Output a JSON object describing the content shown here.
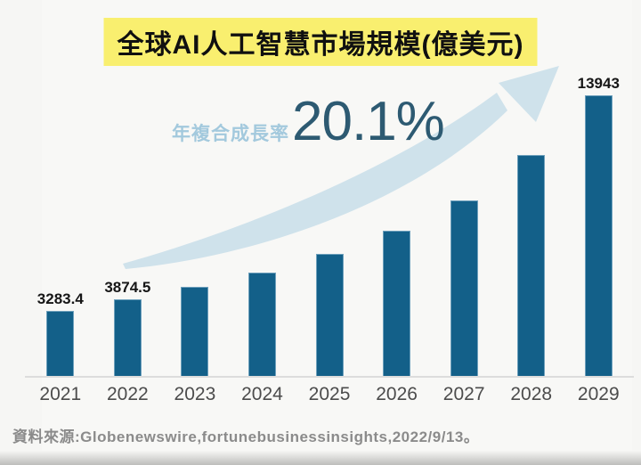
{
  "title": {
    "text": "全球AI人工智慧市場規模(億美元)",
    "highlight_color": "#f9ef6f"
  },
  "annotation": {
    "prefix": "年複合成長率",
    "value": "20.1%",
    "prefix_color": "#a3c9dd",
    "value_color": "#2d5a72"
  },
  "source": {
    "text": "資料來源:Globenewswire,fortunebusinessinsights,2022/9/13。"
  },
  "icons": {
    "growth_arrow": "curved-up-right-swoosh",
    "growth_arrow_color": "#cfe2eb"
  },
  "colors": {
    "background": "#f6f6f4",
    "bar": "#136089",
    "axis_line": "#dcdcdc",
    "year_label": "#4c4c4c",
    "bar_value_label": "#161616",
    "source_text": "#8b8b8b"
  },
  "chart_data": {
    "type": "bar",
    "title": "全球AI人工智慧市場規模(億美元)",
    "unit": "億美元",
    "categories": [
      "2021",
      "2022",
      "2023",
      "2024",
      "2025",
      "2026",
      "2027",
      "2028",
      "2029"
    ],
    "values": [
      3283.4,
      3874.5,
      4480,
      5180,
      6100,
      7250,
      8760,
      11000,
      13943
    ],
    "bar_labels": [
      "3283.4",
      "3874.5",
      "",
      "",
      "",
      "",
      "",
      "",
      "13943"
    ],
    "cagr": "20.1%",
    "xlabel": "",
    "ylabel": "",
    "ylim": [
      0,
      14000
    ],
    "grid": false,
    "legend": "none",
    "value_axis_shown": false,
    "estimated_unlabeled_values": [
      "2023",
      "2024",
      "2025",
      "2026",
      "2027",
      "2028"
    ]
  }
}
